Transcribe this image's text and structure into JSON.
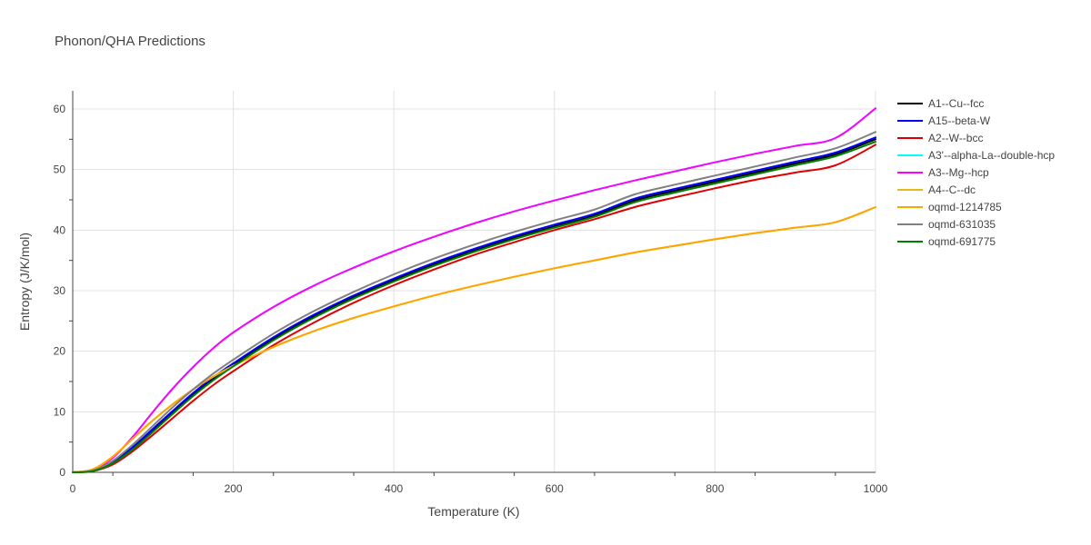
{
  "chart_data": {
    "type": "line",
    "title": "Phonon/QHA Predictions",
    "xlabel": "Temperature (K)",
    "ylabel": "Entropy (J/K/mol)",
    "xlim": [
      0,
      1000
    ],
    "ylim": [
      0,
      63
    ],
    "xticks": [
      0,
      200,
      400,
      600,
      800,
      1000
    ],
    "yticks": [
      0,
      10,
      20,
      30,
      40,
      50,
      60
    ],
    "grid": true,
    "legend_position": "right",
    "x": [
      0,
      25,
      50,
      75,
      100,
      125,
      150,
      175,
      200,
      250,
      300,
      350,
      400,
      450,
      500,
      550,
      600,
      650,
      700,
      750,
      800,
      850,
      900,
      950,
      1000
    ],
    "series": [
      {
        "name": "A1--Cu--fcc",
        "color": "#000000",
        "values": [
          0,
          0.3,
          1.6,
          4.0,
          6.9,
          9.9,
          12.8,
          15.4,
          17.7,
          22.0,
          25.7,
          28.9,
          31.7,
          34.3,
          36.6,
          38.7,
          40.6,
          42.4,
          44.9,
          46.5,
          48.0,
          49.5,
          51.0,
          52.5,
          55.0
        ]
      },
      {
        "name": "A15--beta-W",
        "color": "#0000ff",
        "values": [
          0,
          0.3,
          1.7,
          4.2,
          7.2,
          10.2,
          13.1,
          15.7,
          18.0,
          22.3,
          26.0,
          29.2,
          32.0,
          34.6,
          36.9,
          39.0,
          40.9,
          42.7,
          45.2,
          46.8,
          48.3,
          49.8,
          51.3,
          52.8,
          55.3
        ]
      },
      {
        "name": "A2--W--bcc",
        "color": "#e00000",
        "values": [
          0,
          0.2,
          1.3,
          3.5,
          6.2,
          9.0,
          11.8,
          14.4,
          16.7,
          21.0,
          24.7,
          28.0,
          30.9,
          33.5,
          35.9,
          38.0,
          40.0,
          41.8,
          43.8,
          45.4,
          46.9,
          48.3,
          49.5,
          50.7,
          54.1
        ]
      },
      {
        "name": "A3'--alpha-La--double-hcp",
        "color": "#00ffff",
        "values": [
          0,
          0.4,
          2.4,
          5.9,
          10.0,
          13.9,
          17.4,
          20.5,
          23.1,
          27.3,
          30.8,
          33.8,
          36.5,
          38.9,
          41.1,
          43.1,
          44.9,
          46.6,
          48.2,
          49.7,
          51.2,
          52.6,
          53.9,
          55.2,
          60.1
        ]
      },
      {
        "name": "A3--Mg--hcp",
        "color": "#ff00ff",
        "values": [
          0,
          0.4,
          2.4,
          5.9,
          10.0,
          13.9,
          17.4,
          20.5,
          23.1,
          27.3,
          30.8,
          33.8,
          36.5,
          38.9,
          41.1,
          43.1,
          44.9,
          46.6,
          48.2,
          49.7,
          51.2,
          52.6,
          53.9,
          55.2,
          60.1
        ]
      },
      {
        "name": "A4--C--dc",
        "color": "#e6b820",
        "values": [
          0,
          0.5,
          2.6,
          5.6,
          8.6,
          11.3,
          13.7,
          15.8,
          17.6,
          20.7,
          23.3,
          25.5,
          27.4,
          29.2,
          30.8,
          32.3,
          33.7,
          35.0,
          36.3,
          37.4,
          38.5,
          39.5,
          40.4,
          41.3,
          43.8
        ]
      },
      {
        "name": "oqmd-1214785",
        "color": "#ffa500",
        "values": [
          0,
          0.5,
          2.6,
          5.6,
          8.6,
          11.3,
          13.7,
          15.8,
          17.6,
          20.7,
          23.3,
          25.5,
          27.4,
          29.2,
          30.8,
          32.3,
          33.7,
          35.0,
          36.3,
          37.4,
          38.5,
          39.5,
          40.4,
          41.3,
          43.8
        ]
      },
      {
        "name": "oqmd-631035",
        "color": "#808080",
        "values": [
          0,
          0.3,
          1.9,
          4.6,
          7.7,
          10.8,
          13.7,
          16.3,
          18.6,
          22.9,
          26.6,
          29.8,
          32.7,
          35.3,
          37.6,
          39.7,
          41.6,
          43.4,
          45.9,
          47.5,
          49.0,
          50.5,
          52.0,
          53.5,
          56.2
        ]
      },
      {
        "name": "oqmd-691775",
        "color": "#008000",
        "values": [
          0,
          0.2,
          1.5,
          3.8,
          6.7,
          9.7,
          12.6,
          15.2,
          17.5,
          21.8,
          25.5,
          28.7,
          31.5,
          34.1,
          36.4,
          38.5,
          40.4,
          42.2,
          44.6,
          46.2,
          47.7,
          49.2,
          50.7,
          52.2,
          54.6
        ]
      }
    ]
  }
}
